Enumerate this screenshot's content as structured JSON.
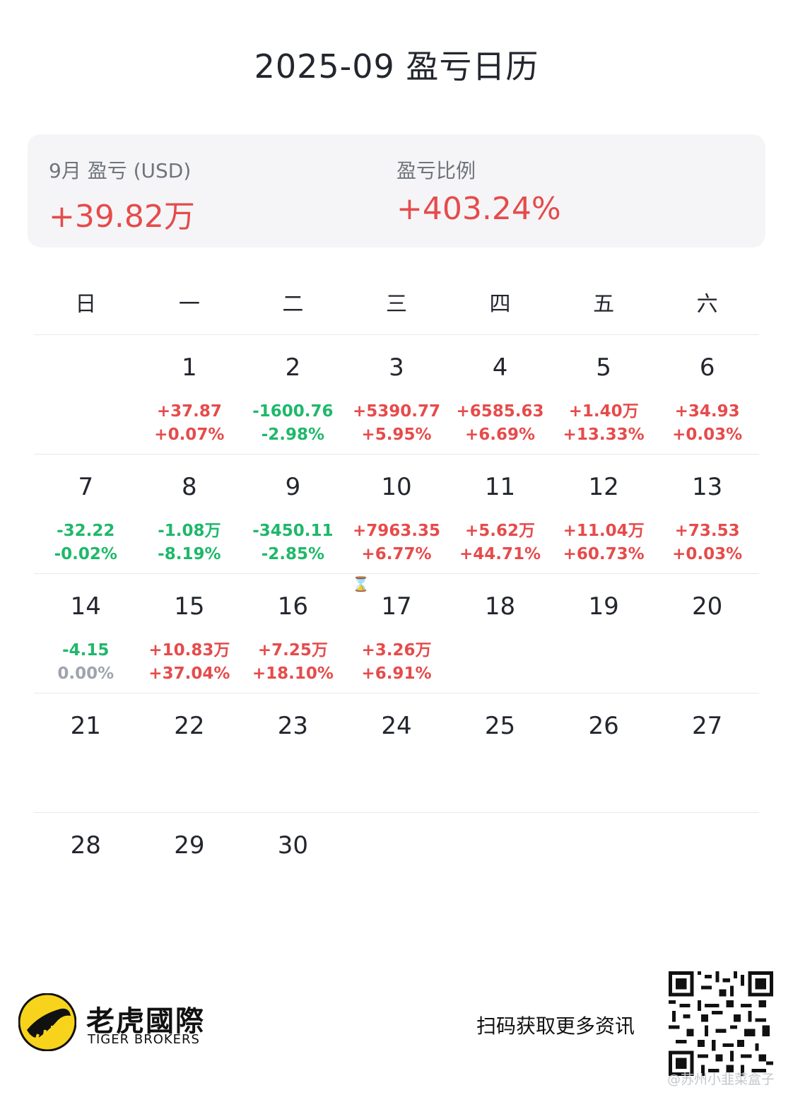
{
  "title": "2025-09 盈亏日历",
  "summary": {
    "month_label": "9月 盈亏 (USD)",
    "month_value": "+39.82万",
    "ratio_label": "盈亏比例",
    "ratio_value": "+403.24%"
  },
  "weekdays": [
    "日",
    "一",
    "二",
    "三",
    "四",
    "五",
    "六"
  ],
  "weeks": [
    [
      {
        "day": "",
        "amount": "",
        "pct": "",
        "sign": ""
      },
      {
        "day": "1",
        "amount": "+37.87",
        "pct": "+0.07%",
        "sign": "pos"
      },
      {
        "day": "2",
        "amount": "-1600.76",
        "pct": "-2.98%",
        "sign": "neg"
      },
      {
        "day": "3",
        "amount": "+5390.77",
        "pct": "+5.95%",
        "sign": "pos"
      },
      {
        "day": "4",
        "amount": "+6585.63",
        "pct": "+6.69%",
        "sign": "pos"
      },
      {
        "day": "5",
        "amount": "+1.40万",
        "pct": "+13.33%",
        "sign": "pos"
      },
      {
        "day": "6",
        "amount": "+34.93",
        "pct": "+0.03%",
        "sign": "pos"
      }
    ],
    [
      {
        "day": "7",
        "amount": "-32.22",
        "pct": "-0.02%",
        "sign": "neg"
      },
      {
        "day": "8",
        "amount": "-1.08万",
        "pct": "-8.19%",
        "sign": "neg"
      },
      {
        "day": "9",
        "amount": "-3450.11",
        "pct": "-2.85%",
        "sign": "neg"
      },
      {
        "day": "10",
        "amount": "+7963.35",
        "pct": "+6.77%",
        "sign": "pos"
      },
      {
        "day": "11",
        "amount": "+5.62万",
        "pct": "+44.71%",
        "sign": "pos"
      },
      {
        "day": "12",
        "amount": "+11.04万",
        "pct": "+60.73%",
        "sign": "pos"
      },
      {
        "day": "13",
        "amount": "+73.53",
        "pct": "+0.03%",
        "sign": "pos"
      }
    ],
    [
      {
        "day": "14",
        "amount": "-4.15",
        "pct": "0.00%",
        "sign": "neg",
        "pct_sign": "zero"
      },
      {
        "day": "15",
        "amount": "+10.83万",
        "pct": "+37.04%",
        "sign": "pos"
      },
      {
        "day": "16",
        "amount": "+7.25万",
        "pct": "+18.10%",
        "sign": "pos"
      },
      {
        "day": "17",
        "amount": "+3.26万",
        "pct": "+6.91%",
        "sign": "pos"
      },
      {
        "day": "18",
        "amount": "",
        "pct": "",
        "sign": ""
      },
      {
        "day": "19",
        "amount": "",
        "pct": "",
        "sign": ""
      },
      {
        "day": "20",
        "amount": "",
        "pct": "",
        "sign": ""
      }
    ],
    [
      {
        "day": "21",
        "amount": "",
        "pct": "",
        "sign": ""
      },
      {
        "day": "22",
        "amount": "",
        "pct": "",
        "sign": ""
      },
      {
        "day": "23",
        "amount": "",
        "pct": "",
        "sign": ""
      },
      {
        "day": "24",
        "amount": "",
        "pct": "",
        "sign": ""
      },
      {
        "day": "25",
        "amount": "",
        "pct": "",
        "sign": ""
      },
      {
        "day": "26",
        "amount": "",
        "pct": "",
        "sign": ""
      },
      {
        "day": "27",
        "amount": "",
        "pct": "",
        "sign": ""
      }
    ],
    [
      {
        "day": "28",
        "amount": "",
        "pct": "",
        "sign": ""
      },
      {
        "day": "29",
        "amount": "",
        "pct": "",
        "sign": ""
      },
      {
        "day": "30",
        "amount": "",
        "pct": "",
        "sign": ""
      },
      {
        "day": "",
        "amount": "",
        "pct": "",
        "sign": ""
      },
      {
        "day": "",
        "amount": "",
        "pct": "",
        "sign": ""
      },
      {
        "day": "",
        "amount": "",
        "pct": "",
        "sign": ""
      },
      {
        "day": "",
        "amount": "",
        "pct": "",
        "sign": ""
      }
    ]
  ],
  "footer": {
    "brand_cn": "老虎國際",
    "brand_en": "TIGER BROKERS",
    "scan_text": "扫码获取更多资讯",
    "watermark": "@苏州小韭菜盒子",
    "logo_icon": "tiger-logo-icon",
    "qr_icon": "qr-code-icon"
  },
  "colors": {
    "positive": "#e64b4b",
    "negative": "#1fb86a",
    "neutral": "#a0a4ad",
    "brand_yellow": "#f7d31c"
  }
}
